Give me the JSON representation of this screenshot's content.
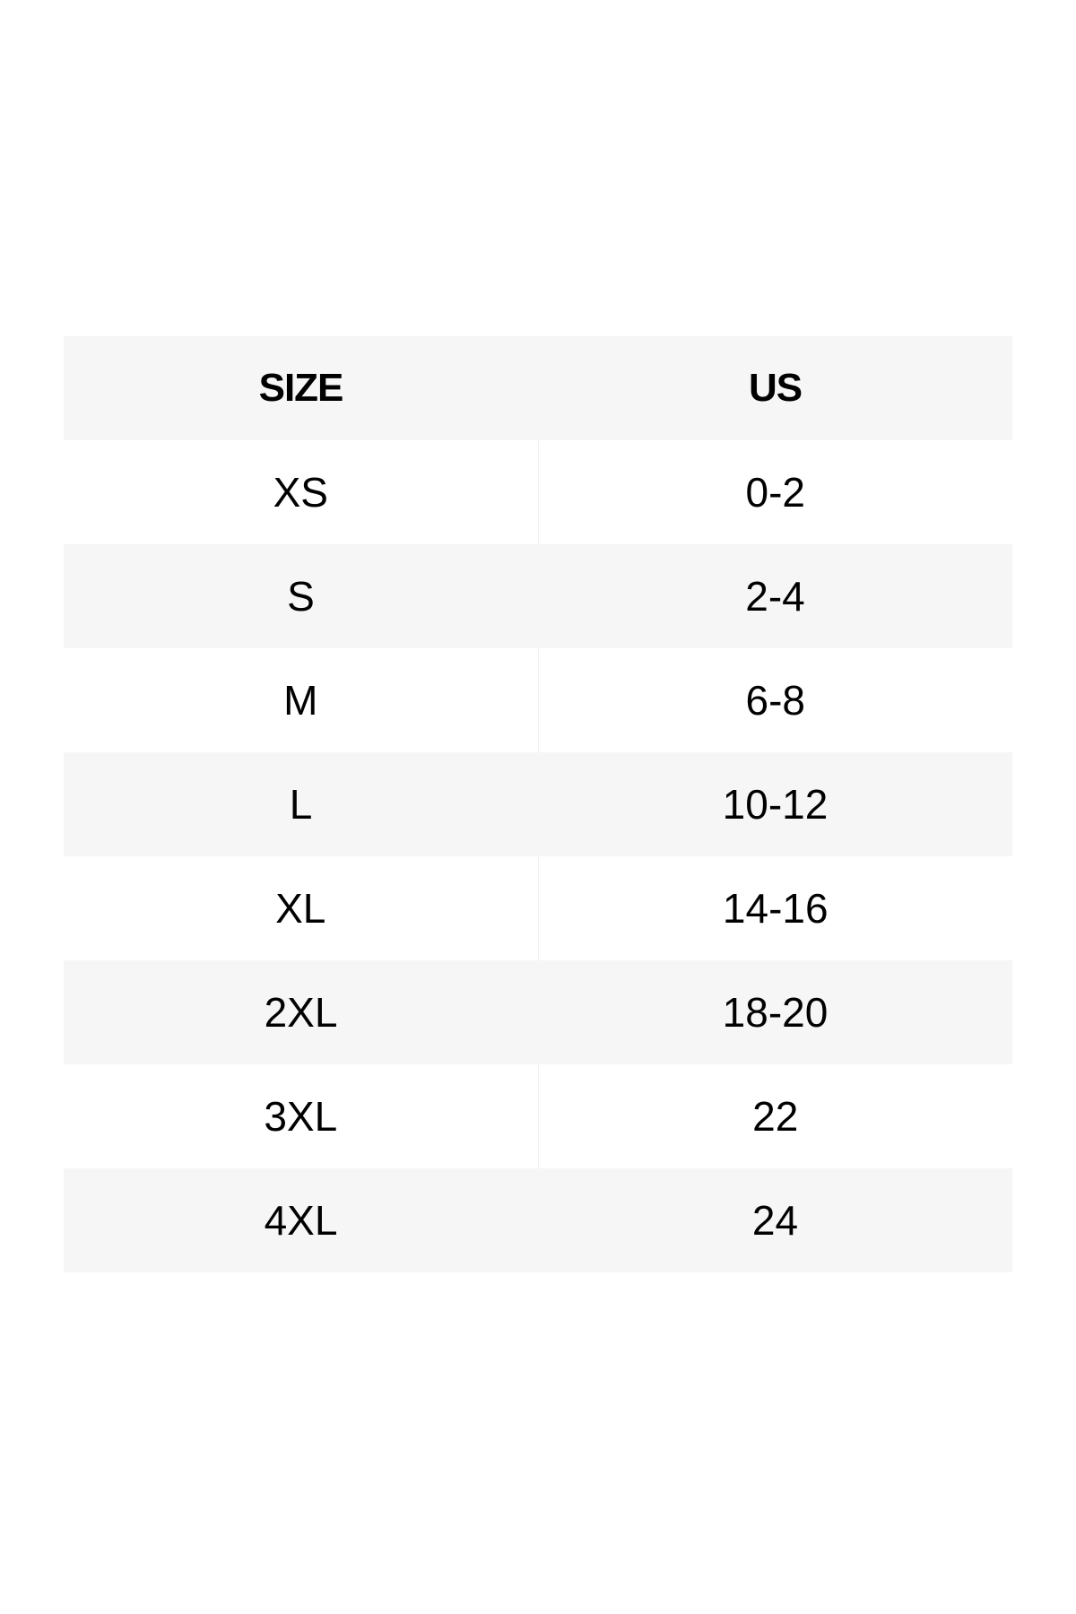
{
  "table": {
    "headers": [
      "SIZE",
      "US"
    ],
    "rows": [
      [
        "XS",
        "0-2"
      ],
      [
        "S",
        "2-4"
      ],
      [
        "M",
        "6-8"
      ],
      [
        "L",
        "10-12"
      ],
      [
        "XL",
        "14-16"
      ],
      [
        "2XL",
        "18-20"
      ],
      [
        "3XL",
        "22"
      ],
      [
        "4XL",
        "24"
      ]
    ]
  },
  "colors": {
    "header_bg": "#f6f6f6",
    "stripe_bg": "#f6f6f6",
    "text": "#000000"
  }
}
